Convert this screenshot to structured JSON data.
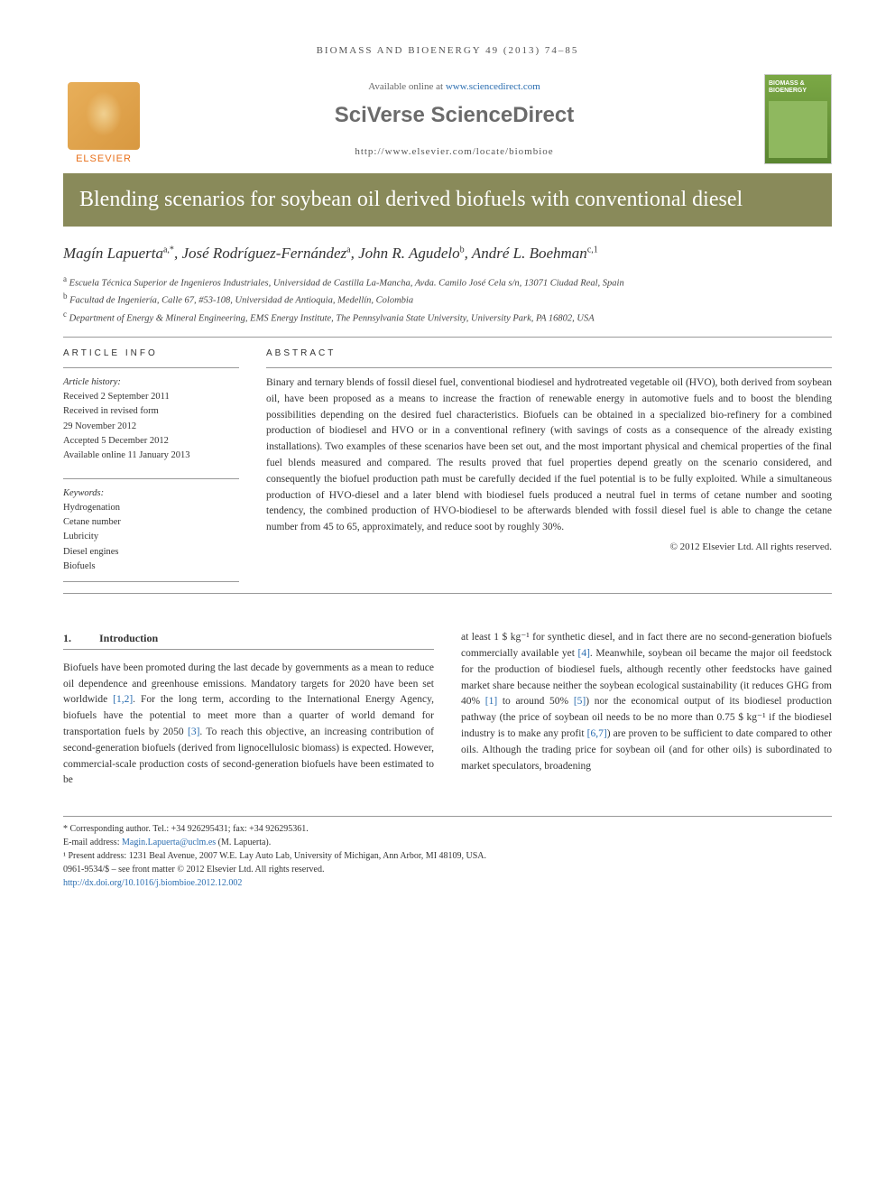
{
  "running_head": "BIOMASS AND BIOENERGY 49 (2013) 74–85",
  "header": {
    "available_text": "Available online at ",
    "available_url": "www.sciencedirect.com",
    "platform": "SciVerse ScienceDirect",
    "journal_url": "http://www.elsevier.com/locate/biombioe",
    "publisher": "ELSEVIER",
    "journal_cover_title": "BIOMASS & BIOENERGY"
  },
  "article": {
    "title": "Blending scenarios for soybean oil derived biofuels with conventional diesel",
    "authors_html": "Magín Lapuerta",
    "authors": [
      {
        "name": "Magín Lapuerta",
        "sup": "a,*"
      },
      {
        "name": "José Rodríguez-Fernández",
        "sup": "a"
      },
      {
        "name": "John R. Agudelo",
        "sup": "b"
      },
      {
        "name": "André L. Boehman",
        "sup": "c,1"
      }
    ],
    "affiliations": [
      {
        "sup": "a",
        "text": "Escuela Técnica Superior de Ingenieros Industriales, Universidad de Castilla La-Mancha, Avda. Camilo José Cela s/n, 13071 Ciudad Real, Spain"
      },
      {
        "sup": "b",
        "text": "Facultad de Ingeniería, Calle 67, #53-108, Universidad de Antioquia, Medellín, Colombia"
      },
      {
        "sup": "c",
        "text": "Department of Energy & Mineral Engineering, EMS Energy Institute, The Pennsylvania State University, University Park, PA 16802, USA"
      }
    ]
  },
  "info": {
    "heading": "ARTICLE INFO",
    "history_label": "Article history:",
    "history": [
      "Received 2 September 2011",
      "Received in revised form",
      "29 November 2012",
      "Accepted 5 December 2012",
      "Available online 11 January 2013"
    ],
    "keywords_label": "Keywords:",
    "keywords": [
      "Hydrogenation",
      "Cetane number",
      "Lubricity",
      "Diesel engines",
      "Biofuels"
    ]
  },
  "abstract": {
    "heading": "ABSTRACT",
    "text": "Binary and ternary blends of fossil diesel fuel, conventional biodiesel and hydrotreated vegetable oil (HVO), both derived from soybean oil, have been proposed as a means to increase the fraction of renewable energy in automotive fuels and to boost the blending possibilities depending on the desired fuel characteristics. Biofuels can be obtained in a specialized bio-refinery for a combined production of biodiesel and HVO or in a conventional refinery (with savings of costs as a consequence of the already existing installations). Two examples of these scenarios have been set out, and the most important physical and chemical properties of the final fuel blends measured and compared. The results proved that fuel properties depend greatly on the scenario considered, and consequently the biofuel production path must be carefully decided if the fuel potential is to be fully exploited. While a simultaneous production of HVO-diesel and a later blend with biodiesel fuels produced a neutral fuel in terms of cetane number and sooting tendency, the combined production of HVO-biodiesel to be afterwards blended with fossil diesel fuel is able to change the cetane number from 45 to 65, approximately, and reduce soot by roughly 30%.",
    "copyright": "© 2012 Elsevier Ltd. All rights reserved."
  },
  "sections": {
    "intro_num": "1.",
    "intro_title": "Introduction",
    "col1": "Biofuels have been promoted during the last decade by governments as a mean to reduce oil dependence and greenhouse emissions. Mandatory targets for 2020 have been set worldwide [1,2]. For the long term, according to the International Energy Agency, biofuels have the potential to meet more than a quarter of world demand for transportation fuels by 2050 [3]. To reach this objective, an increasing contribution of second-generation biofuels (derived from lignocellulosic biomass) is expected. However, commercial-scale production costs of second-generation biofuels have been estimated to be",
    "col2": "at least 1 $ kg⁻¹ for synthetic diesel, and in fact there are no second-generation biofuels commercially available yet [4]. Meanwhile, soybean oil became the major oil feedstock for the production of biodiesel fuels, although recently other feedstocks have gained market share because neither the soybean ecological sustainability (it reduces GHG from 40% [1] to around 50% [5]) nor the economical output of its biodiesel production pathway (the price of soybean oil needs to be no more than 0.75 $ kg⁻¹ if the biodiesel industry is to make any profit [6,7]) are proven to be sufficient to date compared to other oils. Although the trading price for soybean oil (and for other oils) is subordinated to market speculators, broadening",
    "refs_col1": [
      "[1,2]",
      "[3]"
    ],
    "refs_col2": [
      "[4]",
      "[1]",
      "[5]",
      "[6,7]"
    ]
  },
  "footnotes": {
    "corresponding": "* Corresponding author. Tel.: +34 926295431; fax: +34 926295361.",
    "email_label": "E-mail address: ",
    "email": "Magin.Lapuerta@uclm.es",
    "email_author": " (M. Lapuerta).",
    "present_addr": "¹ Present address: 1231 Beal Avenue, 2007 W.E. Lay Auto Lab, University of Michigan, Ann Arbor, MI 48109, USA.",
    "front_matter": "0961-9534/$ – see front matter © 2012 Elsevier Ltd. All rights reserved.",
    "doi": "http://dx.doi.org/10.1016/j.biombioe.2012.12.002"
  },
  "colors": {
    "title_bg": "#898a5a",
    "link": "#2a6db0",
    "publisher_orange": "#e8711c"
  }
}
